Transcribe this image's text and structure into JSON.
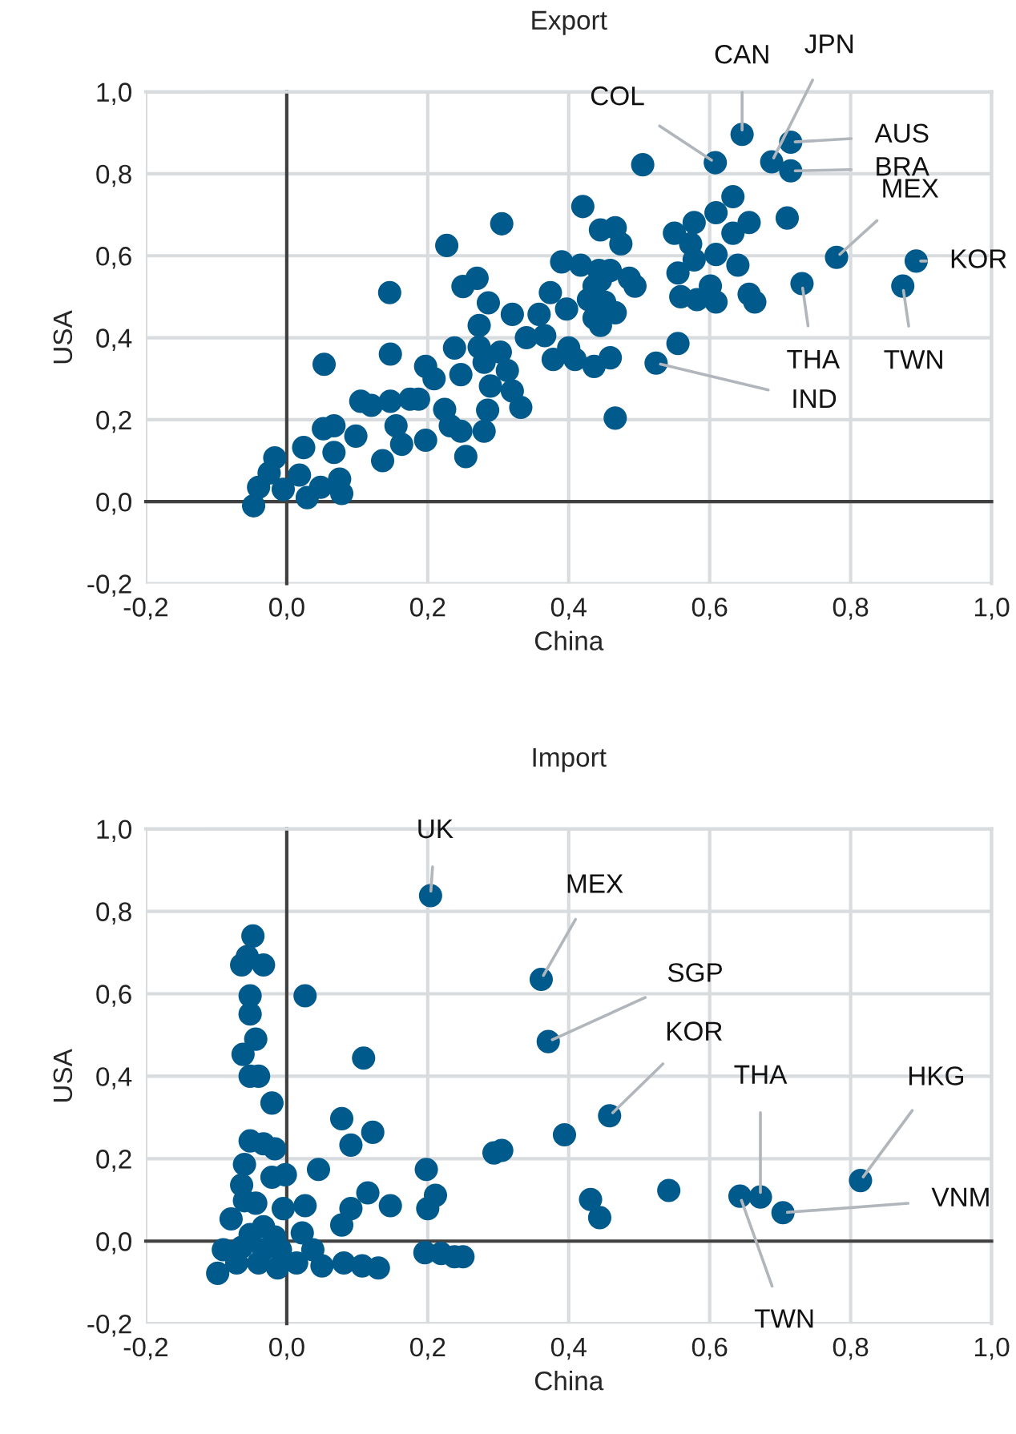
{
  "chart_data": [
    {
      "type": "scatter",
      "title": "Export",
      "xlabel": "China",
      "ylabel": "USA",
      "xlim": [
        -0.2,
        1.0
      ],
      "ylim": [
        -0.2,
        1.0
      ],
      "xticks": [
        {
          "value": -0.2,
          "label": "-0,2"
        },
        {
          "value": 0,
          "label": "0,0"
        },
        {
          "value": 0.2,
          "label": "0,2"
        },
        {
          "value": 0.4,
          "label": "0,4"
        },
        {
          "value": 0.6,
          "label": "0,6"
        },
        {
          "value": 0.8,
          "label": "0,8"
        },
        {
          "value": 1.0,
          "label": "1,0"
        }
      ],
      "yticks": [
        {
          "value": -0.2,
          "label": "-0,2"
        },
        {
          "value": 0,
          "label": "0,0"
        },
        {
          "value": 0.2,
          "label": "0,2"
        },
        {
          "value": 0.4,
          "label": "0,4"
        },
        {
          "value": 0.6,
          "label": "0,6"
        },
        {
          "value": 0.8,
          "label": "0,8"
        },
        {
          "value": 1.0,
          "label": "1,0"
        }
      ],
      "grid": true,
      "marker": "circle",
      "legend": false,
      "series": [
        {
          "color": "#005a8c",
          "x": [
            -0.047,
            -0.04,
            -0.017,
            -0.025,
            0.018,
            -0.005,
            0.029,
            0.048,
            0.075,
            0.078,
            0.024,
            0.052,
            0.067,
            0.067,
            0.098,
            0.105,
            0.12,
            0.136,
            0.147,
            0.155,
            0.175,
            0.187,
            0.163,
            0.197,
            0.147,
            0.146,
            0.053,
            0.197,
            0.209,
            0.224,
            0.232,
            0.247,
            0.254,
            0.227,
            0.247,
            0.238,
            0.25,
            0.27,
            0.273,
            0.286,
            0.273,
            0.28,
            0.289,
            0.285,
            0.28,
            0.303,
            0.313,
            0.32,
            0.332,
            0.305,
            0.32,
            0.34,
            0.358,
            0.374,
            0.366,
            0.378,
            0.39,
            0.417,
            0.397,
            0.4,
            0.409,
            0.42,
            0.445,
            0.436,
            0.445,
            0.445,
            0.466,
            0.646,
            0.608,
            0.688,
            0.715,
            0.715,
            0.505,
            0.633,
            0.609,
            0.656,
            0.633,
            0.71,
            0.578,
            0.55,
            0.573,
            0.578,
            0.609,
            0.64,
            0.555,
            0.601,
            0.559,
            0.582,
            0.609,
            0.656,
            0.664,
            0.466,
            0.474,
            0.443,
            0.459,
            0.486,
            0.494,
            0.436,
            0.428,
            0.451,
            0.466,
            0.436,
            0.555,
            0.524,
            0.459,
            0.78,
            0.893,
            0.874,
            0.731
          ],
          "values": [
            -0.01,
            0.035,
            0.107,
            0.07,
            0.065,
            0.03,
            0.01,
            0.035,
            0.055,
            0.02,
            0.132,
            0.178,
            0.185,
            0.12,
            0.16,
            0.245,
            0.235,
            0.1,
            0.245,
            0.185,
            0.25,
            0.25,
            0.14,
            0.15,
            0.36,
            0.51,
            0.335,
            0.33,
            0.3,
            0.225,
            0.185,
            0.172,
            0.11,
            0.625,
            0.31,
            0.375,
            0.525,
            0.545,
            0.43,
            0.485,
            0.377,
            0.34,
            0.282,
            0.223,
            0.172,
            0.365,
            0.32,
            0.27,
            0.23,
            0.678,
            0.457,
            0.4,
            0.457,
            0.51,
            0.405,
            0.347,
            0.585,
            0.577,
            0.47,
            0.375,
            0.347,
            0.72,
            0.663,
            0.33,
            0.54,
            0.43,
            0.204,
            0.896,
            0.827,
            0.829,
            0.877,
            0.807,
            0.822,
            0.744,
            0.705,
            0.681,
            0.655,
            0.692,
            0.681,
            0.655,
            0.629,
            0.59,
            0.603,
            0.577,
            0.558,
            0.526,
            0.5,
            0.493,
            0.487,
            0.506,
            0.487,
            0.668,
            0.629,
            0.564,
            0.564,
            0.545,
            0.526,
            0.526,
            0.493,
            0.487,
            0.461,
            0.448,
            0.386,
            0.338,
            0.351,
            0.596,
            0.587,
            0.526,
            0.532
          ]
        }
      ],
      "annotations": [
        {
          "text": "COL",
          "x": 0.608,
          "y": 0.827
        },
        {
          "text": "CAN",
          "x": 0.646,
          "y": 0.896
        },
        {
          "text": "JPN",
          "x": 0.688,
          "y": 0.829
        },
        {
          "text": "AUS",
          "x": 0.715,
          "y": 0.877
        },
        {
          "text": "BRA",
          "x": 0.715,
          "y": 0.807
        },
        {
          "text": "MEX",
          "x": 0.78,
          "y": 0.596
        },
        {
          "text": "KOR",
          "x": 0.893,
          "y": 0.587
        },
        {
          "text": "TWN",
          "x": 0.874,
          "y": 0.526
        },
        {
          "text": "THA",
          "x": 0.731,
          "y": 0.532
        },
        {
          "text": "IND",
          "x": 0.524,
          "y": 0.338
        }
      ]
    },
    {
      "type": "scatter",
      "title": "Import",
      "xlabel": "China",
      "ylabel": "USA",
      "xlim": [
        -0.2,
        1.0
      ],
      "ylim": [
        -0.2,
        1.0
      ],
      "xticks": [
        {
          "value": -0.2,
          "label": "-0,2"
        },
        {
          "value": 0,
          "label": "0,0"
        },
        {
          "value": 0.2,
          "label": "0,2"
        },
        {
          "value": 0.4,
          "label": "0,4"
        },
        {
          "value": 0.6,
          "label": "0,6"
        },
        {
          "value": 0.8,
          "label": "0,8"
        },
        {
          "value": 1.0,
          "label": "1,0"
        }
      ],
      "yticks": [
        {
          "value": -0.2,
          "label": "-0,2"
        },
        {
          "value": 0,
          "label": "0,0"
        },
        {
          "value": 0.2,
          "label": "0,2"
        },
        {
          "value": 0.4,
          "label": "0,4"
        },
        {
          "value": 0.6,
          "label": "0,6"
        },
        {
          "value": 0.8,
          "label": "0,8"
        },
        {
          "value": 1.0,
          "label": "1,0"
        }
      ],
      "grid": true,
      "marker": "circle",
      "legend": false,
      "series": [
        {
          "color": "#005a8c",
          "x": [
            0.204,
            -0.048,
            -0.064,
            -0.033,
            -0.056,
            0.026,
            -0.052,
            -0.052,
            -0.044,
            -0.062,
            -0.052,
            -0.04,
            0.109,
            -0.021,
            0.078,
            0.122,
            0.091,
            -0.052,
            -0.033,
            -0.017,
            0.045,
            -0.06,
            -0.021,
            -0.002,
            -0.064,
            -0.06,
            -0.044,
            -0.005,
            0.026,
            -0.079,
            0.115,
            0.091,
            0.078,
            0.147,
            0.198,
            0.211,
            0.2,
            0.022,
            -0.033,
            -0.052,
            -0.017,
            -0.09,
            -0.064,
            -0.033,
            -0.009,
            0.037,
            0.05,
            -0.098,
            -0.071,
            -0.04,
            -0.013,
            0.014,
            0.081,
            0.107,
            0.13,
            0.196,
            0.219,
            0.238,
            0.25,
            0.361,
            0.371,
            0.458,
            0.394,
            0.294,
            0.305,
            0.431,
            0.444,
            0.542,
            0.672,
            0.643,
            0.704,
            0.814
          ],
          "values": [
            0.838,
            0.74,
            0.67,
            0.67,
            0.69,
            0.595,
            0.595,
            0.551,
            0.49,
            0.453,
            0.4,
            0.4,
            0.444,
            0.335,
            0.297,
            0.264,
            0.233,
            0.243,
            0.236,
            0.224,
            0.174,
            0.186,
            0.155,
            0.161,
            0.136,
            0.098,
            0.092,
            0.079,
            0.086,
            0.054,
            0.117,
            0.079,
            0.039,
            0.086,
            0.174,
            0.111,
            0.079,
            0.02,
            0.035,
            0.016,
            0.01,
            -0.021,
            -0.015,
            -0.021,
            -0.021,
            -0.021,
            -0.06,
            -0.078,
            -0.053,
            -0.053,
            -0.065,
            -0.053,
            -0.053,
            -0.06,
            -0.065,
            -0.028,
            -0.03,
            -0.038,
            -0.038,
            0.635,
            0.484,
            0.304,
            0.258,
            0.214,
            0.22,
            0.101,
            0.057,
            0.123,
            0.107,
            0.109,
            0.069,
            0.147
          ]
        }
      ],
      "annotations": [
        {
          "text": "UK",
          "x": 0.204,
          "y": 0.838
        },
        {
          "text": "MEX",
          "x": 0.361,
          "y": 0.635
        },
        {
          "text": "SGP",
          "x": 0.371,
          "y": 0.484
        },
        {
          "text": "KOR",
          "x": 0.458,
          "y": 0.304
        },
        {
          "text": "THA",
          "x": 0.672,
          "y": 0.107
        },
        {
          "text": "TWN",
          "x": 0.643,
          "y": 0.109
        },
        {
          "text": "VNM",
          "x": 0.704,
          "y": 0.069
        },
        {
          "text": "HKG",
          "x": 0.814,
          "y": 0.147
        }
      ]
    }
  ]
}
